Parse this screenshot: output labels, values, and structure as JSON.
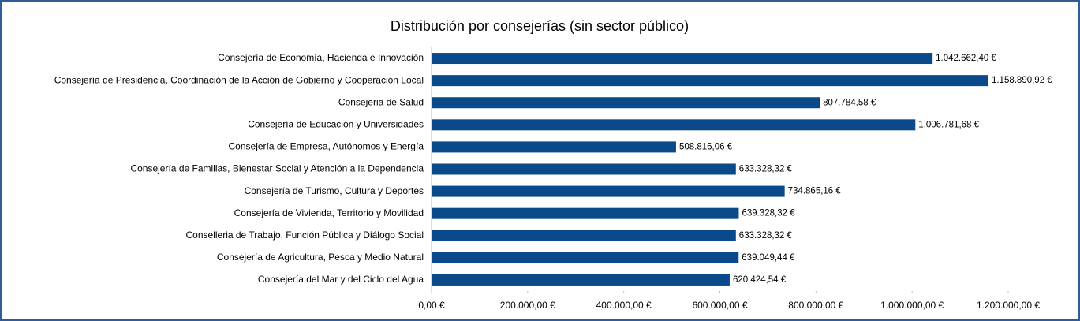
{
  "chart_data": {
    "type": "barh",
    "title": "Distribución por consejerías (sin sector público)",
    "categories": [
      "Consejería de Economía, Hacienda e Innovación",
      "Consejería de Presidencia, Coordinación de la Acción de Gobierno y Cooperación Local",
      "Consejeria de Salud",
      "Consejería de Educación y Universidades",
      "Consejería de Empresa, Autónomos y Energía",
      "Consejería de Familias, Bienestar Social y Atención a la Dependencia",
      "Consejería de Turismo, Cultura y Deportes",
      "Consejería de Vivienda, Territorio y Movilidad",
      "Conselleria de Trabajo, Función Pública y Diálogo Social",
      "Consejería de Agricultura, Pesca y Medio Natural",
      "Consejería del Mar y del Ciclo del Agua"
    ],
    "values": [
      1042662.4,
      1158890.92,
      807784.58,
      1006781.68,
      508816.06,
      633328.32,
      734865.16,
      639328.32,
      633328.32,
      639049.44,
      620424.54
    ],
    "value_labels": [
      "1.042.662,40 €",
      "1.158.890,92 €",
      "807.784,58 €",
      "1.006.781,68 €",
      "508.816,06 €",
      "633.328,32 €",
      "734.865,16 €",
      "639.328,32 €",
      "633.328,32 €",
      "639.049,44 €",
      "620.424,54 €"
    ],
    "color": "#0a4a8a",
    "xlim": [
      0,
      1200000
    ],
    "xticks": [
      {
        "value": 0,
        "label": "0,00 €"
      },
      {
        "value": 200000,
        "label": "200.000,00 €"
      },
      {
        "value": 400000,
        "label": "400.000,00 €"
      },
      {
        "value": 600000,
        "label": "600.000,00 €"
      },
      {
        "value": 800000,
        "label": "800.000,00 €"
      },
      {
        "value": 1000000,
        "label": "1.000.000,00 €"
      },
      {
        "value": 1200000,
        "label": "1.200.000,00 €"
      }
    ]
  }
}
